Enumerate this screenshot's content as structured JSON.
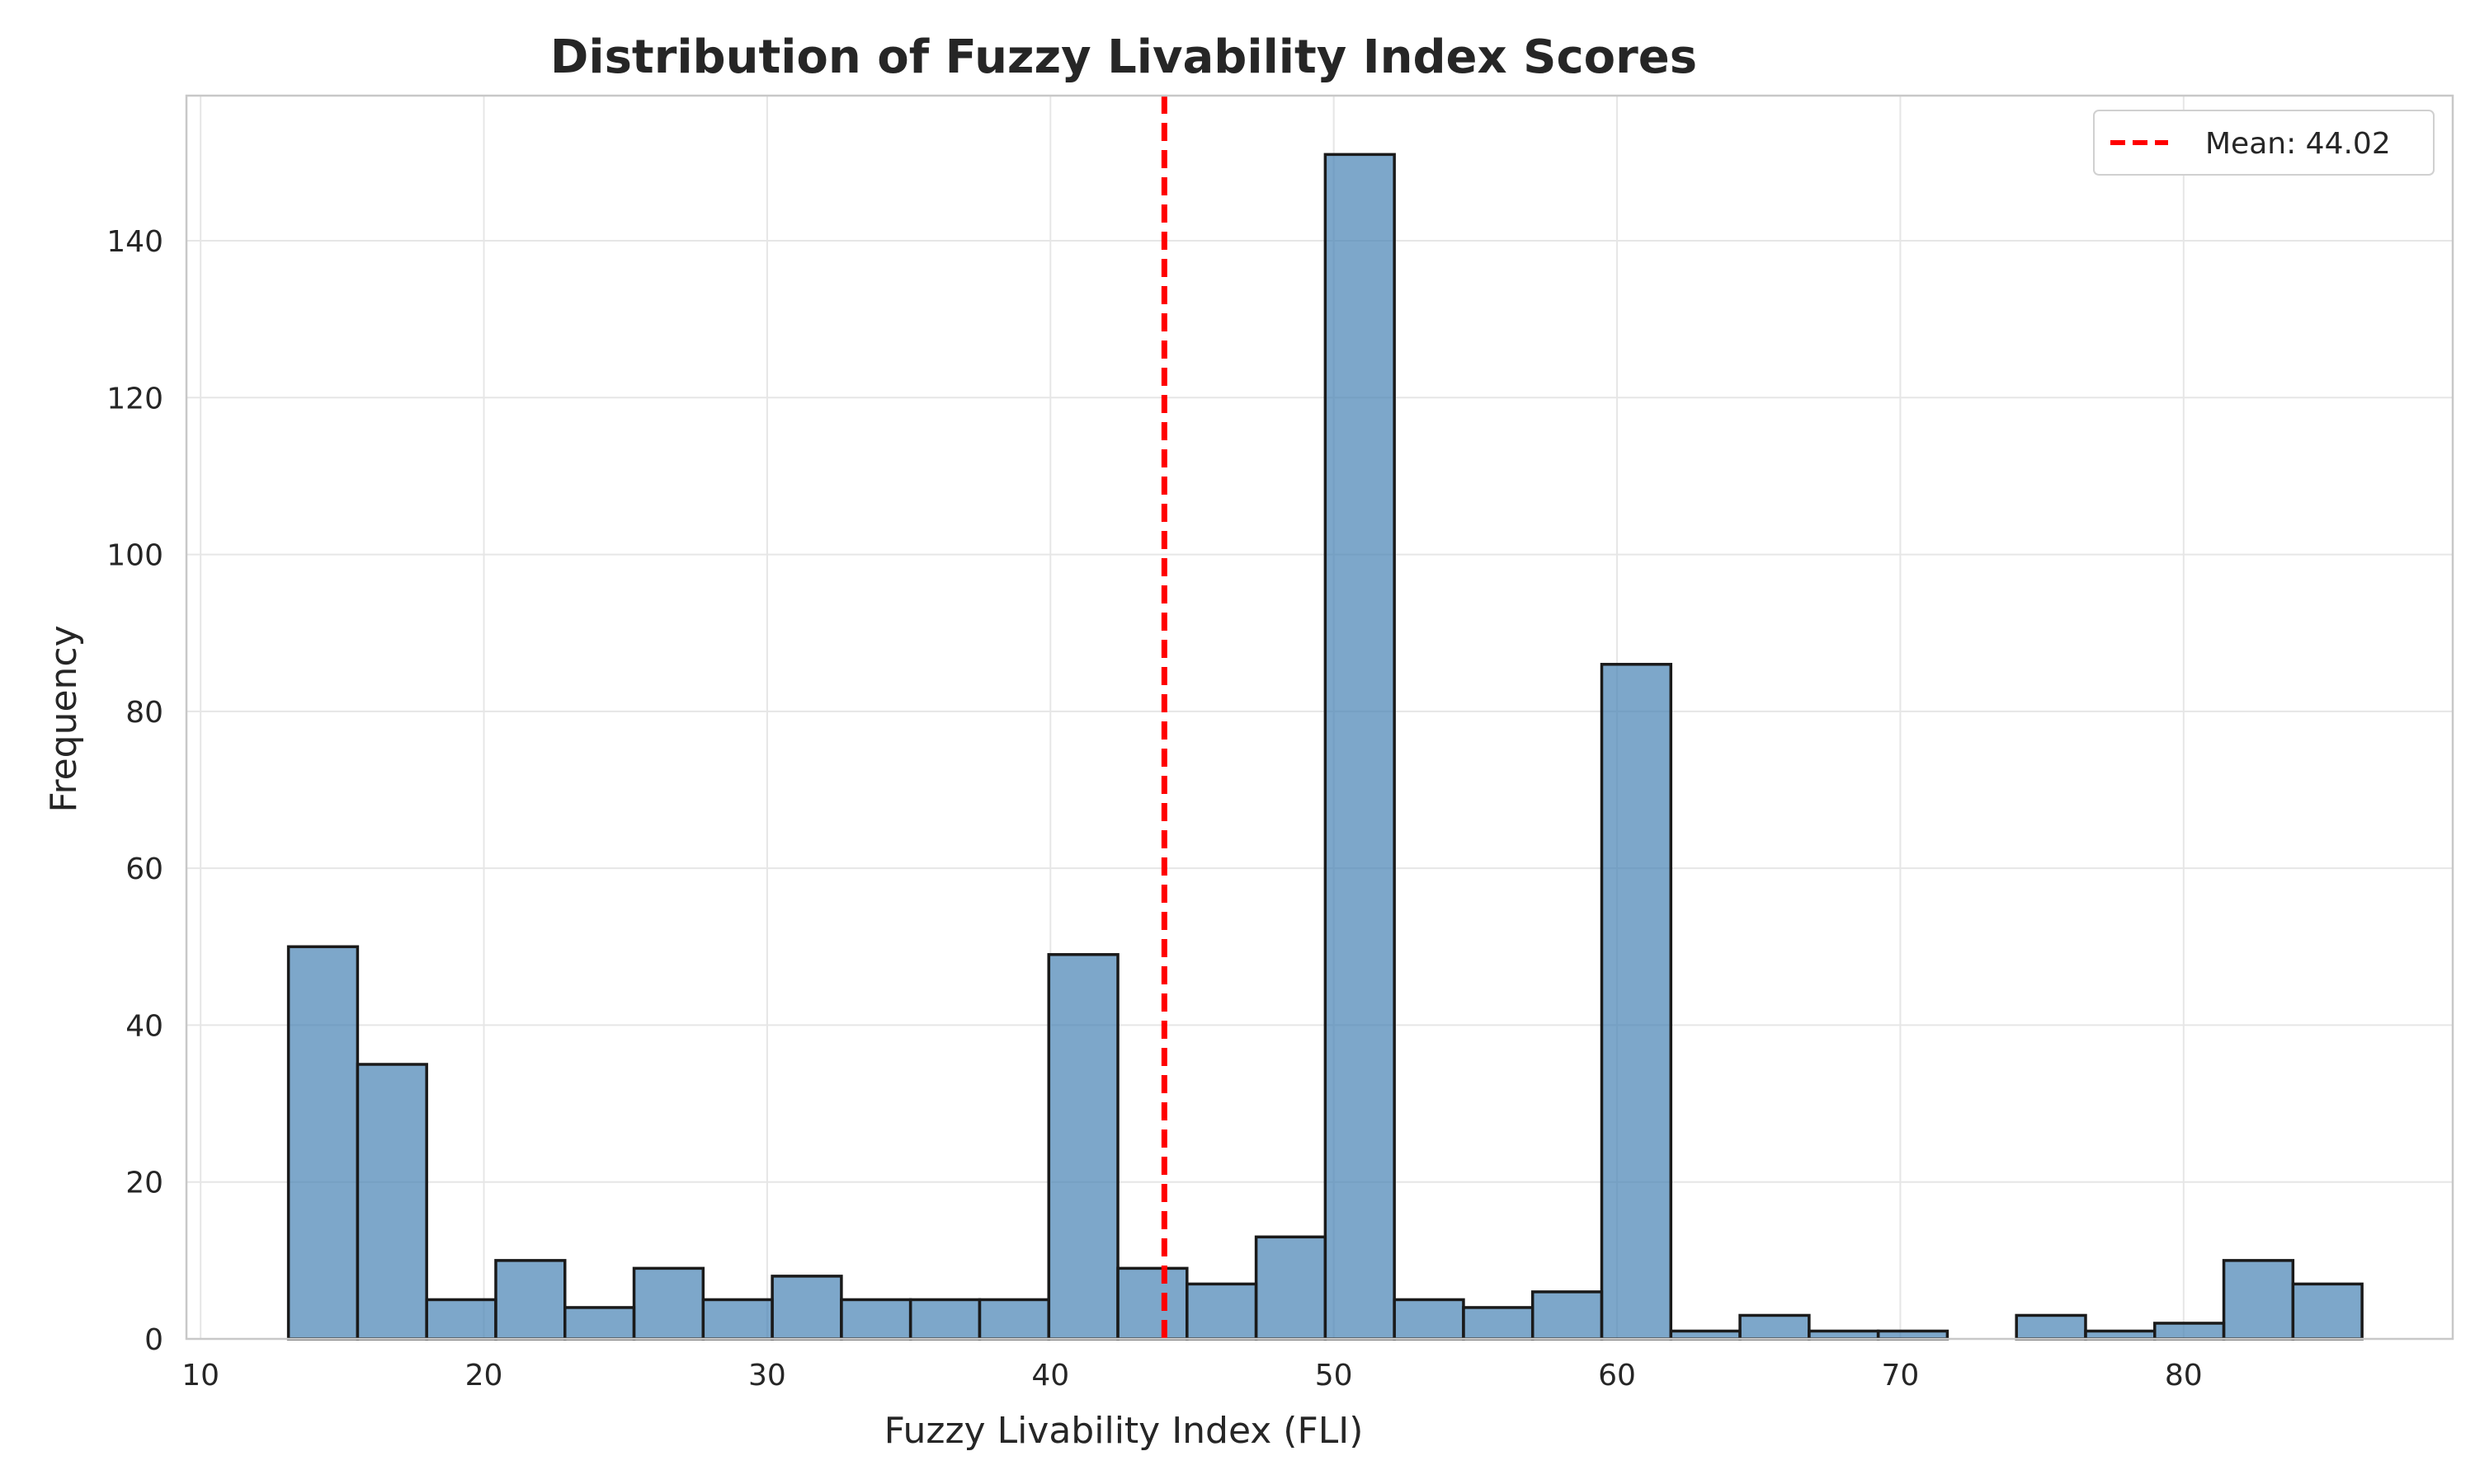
{
  "chart_data": {
    "type": "bar",
    "title": "Distribution of Fuzzy Livability Index Scores",
    "xlabel": "Fuzzy Livability Index (FLI)",
    "ylabel": "Frequency",
    "xlim": [
      9.5,
      89.5
    ],
    "ylim": [
      0,
      158.5
    ],
    "x_ticks": [
      10,
      20,
      30,
      40,
      50,
      60,
      70,
      80
    ],
    "y_ticks": [
      0,
      20,
      40,
      60,
      80,
      100,
      120,
      140
    ],
    "grid": true,
    "bin_edges": [
      13.1,
      15.54,
      17.98,
      20.42,
      22.86,
      25.3,
      27.74,
      30.18,
      32.62,
      35.06,
      37.5,
      39.94,
      42.38,
      44.82,
      47.26,
      49.7,
      52.14,
      54.58,
      57.02,
      59.46,
      61.9,
      64.34,
      66.78,
      69.22,
      71.66,
      74.1,
      76.54,
      78.98,
      81.42,
      83.86,
      86.3
    ],
    "counts": [
      50,
      35,
      5,
      10,
      4,
      9,
      5,
      8,
      5,
      5,
      5,
      49,
      9,
      7,
      13,
      151,
      5,
      4,
      6,
      86,
      1,
      3,
      1,
      1,
      0,
      3,
      1,
      2,
      10,
      7
    ],
    "mean": 44.02,
    "legend": {
      "position": "top-right",
      "entries": [
        "Mean: 44.02"
      ]
    },
    "colors": {
      "bar_fill": "#4682b4",
      "bar_edge": "#1a1a1a",
      "mean_line": "#ff0000",
      "grid": "#e6e6e6",
      "frame": "#c8c8c8"
    }
  }
}
